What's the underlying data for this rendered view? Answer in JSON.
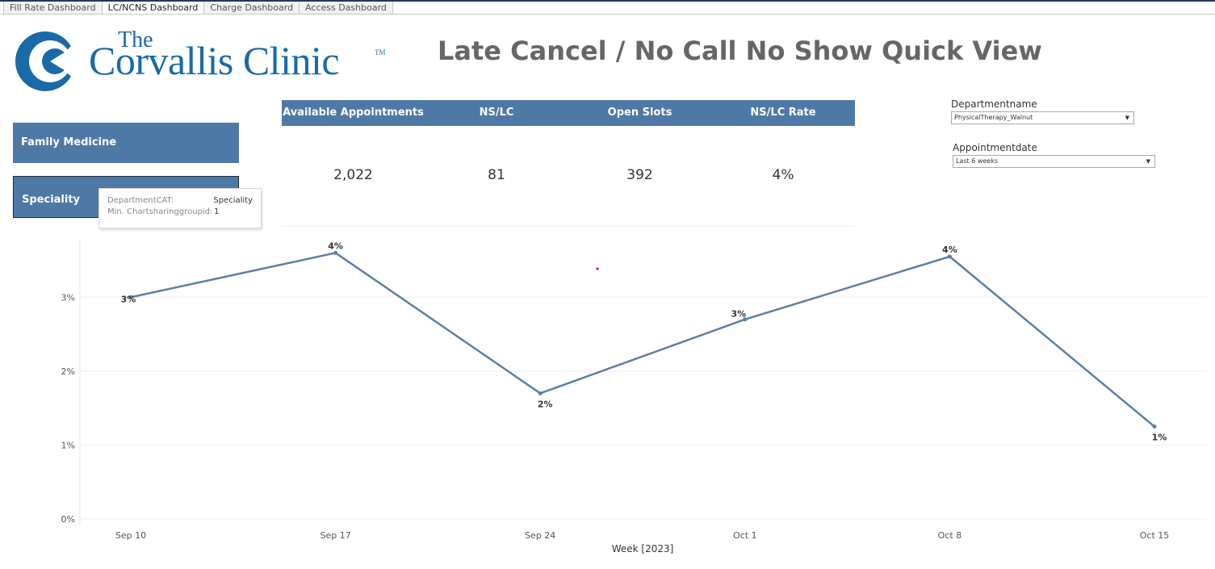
{
  "tabs": [
    "Fill Rate Dashboard",
    "LC/NCNS Dashboard",
    "Charge Dashboard",
    "Access Dashboard"
  ],
  "active_tab_index": 1,
  "logo": {
    "the": "The",
    "name": "Corvallis Clinic",
    "tm": "TM",
    "color": "#1a6aa8"
  },
  "title": "Late Cancel / No Call No Show Quick View",
  "kpi": {
    "headers": [
      "Available Appointments",
      "NS/LC",
      "Open Slots",
      "NS/LC Rate"
    ],
    "values": [
      "2,022",
      "81",
      "392",
      "4%"
    ]
  },
  "categories": {
    "family_medicine": "Family Medicine",
    "speciality": "Speciality"
  },
  "tooltip": {
    "k1": "DepartmentCAT:",
    "v1": "Speciality",
    "k2": "Min. Chartsharinggroupid:",
    "v2": "1"
  },
  "filters": {
    "department": {
      "label": "Departmentname",
      "value": "PhysicalTherapy_Walnut"
    },
    "date": {
      "label": "Appointmentdate",
      "value": "Last 6 weeks"
    }
  },
  "colors": {
    "accent": "#4e79a7",
    "title": "#666666"
  },
  "chart_data": {
    "type": "line",
    "categories": [
      "Sep 10",
      "Sep 17",
      "Sep 24",
      "Oct 1",
      "Oct 8",
      "Oct 15"
    ],
    "values": [
      3.0,
      3.6,
      1.7,
      2.7,
      3.55,
      1.25
    ],
    "data_labels": [
      "3%",
      "4%",
      "2%",
      "3%",
      "4%",
      "1%"
    ],
    "y_ticks": [
      "0%",
      "1%",
      "2%",
      "3%"
    ],
    "y_tick_values": [
      0,
      1,
      2,
      3
    ],
    "ylim": [
      0,
      3.8
    ],
    "xlabel": "Week [2023]",
    "grid": true
  }
}
